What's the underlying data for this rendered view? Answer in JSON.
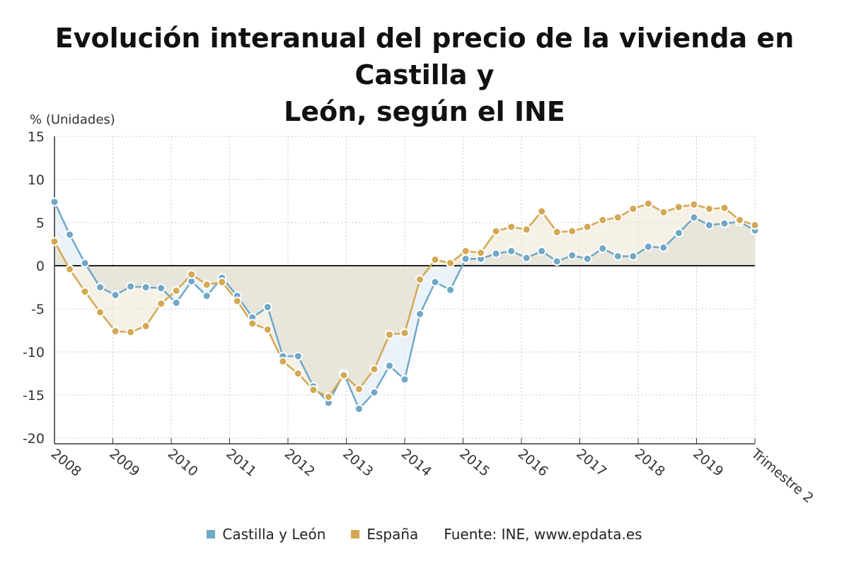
{
  "chart_data": {
    "type": "line",
    "title_line1": "Evolución interanual del precio de la vivienda en Castilla y",
    "title_line2": "León, según el INE",
    "ylabel": "% (Unidades)",
    "ylim": [
      -20,
      15
    ],
    "yticks": [
      15,
      10,
      5,
      0,
      -5,
      -10,
      -15,
      -20
    ],
    "ytick_labels": [
      "15",
      "10",
      "5",
      "0",
      "-5",
      "-10",
      "-15",
      "-20"
    ],
    "xtick_labels": [
      "2008",
      "2009",
      "2010",
      "2011",
      "2012",
      "2013",
      "2014",
      "2015",
      "2016",
      "2017",
      "2018",
      "2019",
      "Trimestre 2"
    ],
    "grid": true,
    "legend_position": "bottom",
    "series": [
      {
        "name": "Castilla y León",
        "color": "#6fa8c8",
        "values": [
          7.4,
          3.6,
          0.3,
          -2.5,
          -3.4,
          -2.4,
          -2.5,
          -2.6,
          -4.3,
          -1.8,
          -3.5,
          -1.4,
          -3.5,
          -6.0,
          -4.8,
          -10.5,
          -10.5,
          -14.0,
          -15.9,
          -12.5,
          -16.6,
          -14.7,
          -11.6,
          -13.2,
          -5.6,
          -1.9,
          -2.8,
          0.8,
          0.8,
          1.4,
          1.7,
          0.9,
          1.7,
          0.5,
          1.2,
          0.8,
          2.0,
          1.1,
          1.1,
          2.2,
          2.1,
          3.8,
          5.6,
          4.7,
          4.9,
          5.1,
          4.1
        ]
      },
      {
        "name": "España",
        "color": "#d4a853",
        "values": [
          2.8,
          -0.4,
          -3.0,
          -5.4,
          -7.6,
          -7.7,
          -7.0,
          -4.4,
          -2.9,
          -1.0,
          -2.2,
          -1.9,
          -4.1,
          -6.7,
          -7.4,
          -11.1,
          -12.5,
          -14.4,
          -15.2,
          -12.7,
          -14.3,
          -12.0,
          -8.0,
          -7.8,
          -1.6,
          0.7,
          0.3,
          1.7,
          1.5,
          4.0,
          4.5,
          4.2,
          6.3,
          3.9,
          4.0,
          4.5,
          5.3,
          5.6,
          6.6,
          7.2,
          6.2,
          6.8,
          7.1,
          6.6,
          6.7,
          5.3,
          4.7
        ]
      }
    ]
  },
  "legend": {
    "items": [
      {
        "label": "Castilla y León",
        "color": "#6fa8c8"
      },
      {
        "label": "España",
        "color": "#d4a853"
      }
    ],
    "source": "Fuente: INE, www.epdata.es"
  }
}
